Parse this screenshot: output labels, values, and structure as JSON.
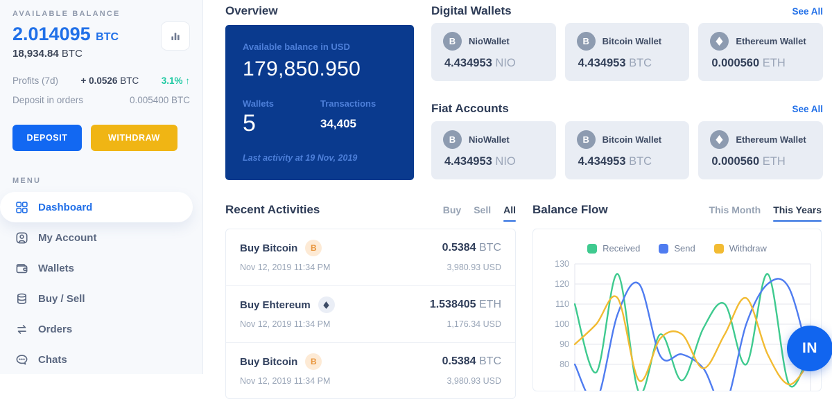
{
  "colors": {
    "accent_blue": "#2270e8",
    "overview_navy": "#0a3a8e",
    "deposit_blue": "#1268f2",
    "withdraw_yellow": "#f0b514",
    "profit_green": "#1ec9a2",
    "card_gray": "#e9edf4"
  },
  "sidebar": {
    "available_balance_label": "AVAILABLE BALANCE",
    "primary_amount": "2.014095",
    "primary_unit": "BTC",
    "secondary_amount": "18,934.84",
    "secondary_unit": "BTC",
    "profits_label": "Profits (7d)",
    "profits_amount": "+ 0.0526",
    "profits_unit": "BTC",
    "profits_percent": "3.1%",
    "profits_arrow": "↑",
    "deposit_in_orders_label": "Deposit in orders",
    "deposit_in_orders_value": "0.005400 BTC",
    "deposit_button_label": "DEPOSIT",
    "withdraw_button_label": "WITHDRAW",
    "menu_heading": "MENU",
    "menu_items": [
      {
        "label": "Dashboard",
        "icon": "dashboard-grid-icon",
        "active": true
      },
      {
        "label": "My Account",
        "icon": "user-icon"
      },
      {
        "label": "Wallets",
        "icon": "wallet-icon"
      },
      {
        "label": "Buy / Sell",
        "icon": "coins-icon"
      },
      {
        "label": "Orders",
        "icon": "swap-arrows-icon"
      },
      {
        "label": "Chats",
        "icon": "chat-bubble-icon"
      }
    ]
  },
  "overview": {
    "title": "Overview",
    "balance_label": "Available balance in USD",
    "balance_value": "179,850.950",
    "wallets_label": "Wallets",
    "wallets_count": "5",
    "transactions_label": "Transactions",
    "transactions_count": "34,405",
    "last_activity": "Last activity at 19 Nov, 2019"
  },
  "digital_wallets": {
    "title": "Digital Wallets",
    "see_all": "See All",
    "cards": [
      {
        "name": "NioWallet",
        "icon": "bitcoin-icon",
        "symbol": "B",
        "amount": "4.434953",
        "unit": "NIO"
      },
      {
        "name": "Bitcoin Wallet",
        "icon": "bitcoin-icon",
        "symbol": "B",
        "amount": "4.434953",
        "unit": "BTC"
      },
      {
        "name": "Ethereum Wallet",
        "icon": "ethereum-icon",
        "amount": "0.000560",
        "unit": "ETH"
      }
    ]
  },
  "fiat_accounts": {
    "title": "Fiat Accounts",
    "see_all": "See All",
    "cards": [
      {
        "name": "NioWallet",
        "icon": "bitcoin-icon",
        "symbol": "B",
        "amount": "4.434953",
        "unit": "NIO"
      },
      {
        "name": "Bitcoin Wallet",
        "icon": "bitcoin-icon",
        "symbol": "B",
        "amount": "4.434953",
        "unit": "BTC"
      },
      {
        "name": "Ethereum Wallet",
        "icon": "ethereum-icon",
        "amount": "0.000560",
        "unit": "ETH"
      }
    ]
  },
  "recent_activities": {
    "title": "Recent Activities",
    "tabs": [
      {
        "label": "Buy"
      },
      {
        "label": "Sell"
      },
      {
        "label": "All",
        "active": true
      }
    ],
    "items": [
      {
        "title": "Buy Bitcoin",
        "icon": "bitcoin-icon",
        "symbol": "B",
        "date": "Nov 12, 2019 11:34 PM",
        "amount": "0.5384",
        "unit": "BTC",
        "fiat": "3,980.93 USD"
      },
      {
        "title": "Buy Ehtereum",
        "icon": "ethereum-icon",
        "date": "Nov 12, 2019 11:34 PM",
        "amount": "1.538405",
        "unit": "ETH",
        "fiat": "1,176.34 USD"
      },
      {
        "title": "Buy Bitcoin",
        "icon": "bitcoin-icon",
        "symbol": "B",
        "date": "Nov 12, 2019 11:34 PM",
        "amount": "0.5384",
        "unit": "BTC",
        "fiat": "3,980.93 USD"
      }
    ]
  },
  "balance_flow": {
    "title": "Balance Flow",
    "tabs": [
      {
        "label": "This Month"
      },
      {
        "label": "This Years",
        "active": true
      }
    ]
  },
  "chart_data": {
    "type": "line",
    "title": "Balance Flow",
    "legend_position": "top",
    "grid": true,
    "smooth": true,
    "yticks": [
      130,
      120,
      110,
      100,
      90,
      80
    ],
    "ylim": [
      60,
      130
    ],
    "series": [
      {
        "name": "Received",
        "color": "#3fca8f",
        "values": [
          110,
          76,
          125,
          66,
          95,
          72,
          98,
          110,
          80,
          125,
          70,
          88
        ]
      },
      {
        "name": "Send",
        "color": "#4f7cf0",
        "values": [
          80,
          62,
          105,
          120,
          84,
          85,
          78,
          60,
          100,
          120,
          118,
          80
        ]
      },
      {
        "name": "Withdraw",
        "color": "#f2bb33",
        "values": [
          90,
          100,
          113,
          72,
          93,
          95,
          78,
          95,
          113,
          85,
          70,
          82
        ]
      }
    ]
  },
  "floating_button": {
    "label": "IN"
  }
}
